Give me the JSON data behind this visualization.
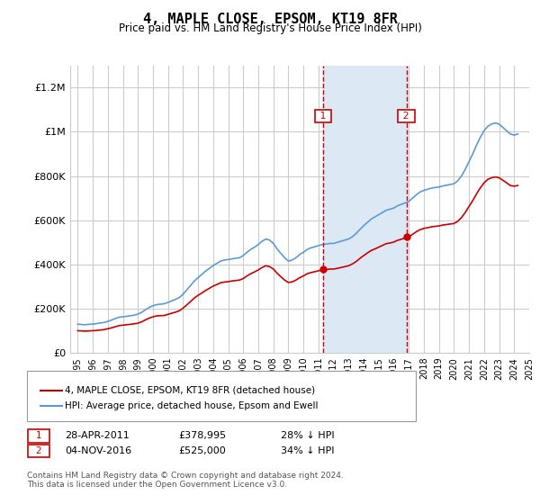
{
  "title": "4, MAPLE CLOSE, EPSOM, KT19 8FR",
  "subtitle": "Price paid vs. HM Land Registry's House Price Index (HPI)",
  "footer": "Contains HM Land Registry data © Crown copyright and database right 2024.\nThis data is licensed under the Open Government Licence v3.0.",
  "legend_line1": "4, MAPLE CLOSE, EPSOM, KT19 8FR (detached house)",
  "legend_line2": "HPI: Average price, detached house, Epsom and Ewell",
  "annotation1_label": "1",
  "annotation1_date": "28-APR-2011",
  "annotation1_price": "£378,995",
  "annotation1_pct": "28% ↓ HPI",
  "annotation1_year": 2011.32,
  "annotation1_value": 378995,
  "annotation2_label": "2",
  "annotation2_date": "04-NOV-2016",
  "annotation2_price": "£525,000",
  "annotation2_pct": "34% ↓ HPI",
  "annotation2_year": 2016.84,
  "annotation2_value": 525000,
  "hpi_color": "#5b9bd5",
  "price_color": "#cc0000",
  "shade_color": "#dce9f5",
  "grid_color": "#cccccc",
  "annotation_box_color": "#cc0000",
  "ylim_min": 0,
  "ylim_max": 1300000,
  "hpi_data": {
    "years": [
      1995,
      1995.25,
      1995.5,
      1995.75,
      1996,
      1996.25,
      1996.5,
      1996.75,
      1997,
      1997.25,
      1997.5,
      1997.75,
      1998,
      1998.25,
      1998.5,
      1998.75,
      1999,
      1999.25,
      1999.5,
      1999.75,
      2000,
      2000.25,
      2000.5,
      2000.75,
      2001,
      2001.25,
      2001.5,
      2001.75,
      2002,
      2002.25,
      2002.5,
      2002.75,
      2003,
      2003.25,
      2003.5,
      2003.75,
      2004,
      2004.25,
      2004.5,
      2004.75,
      2005,
      2005.25,
      2005.5,
      2005.75,
      2006,
      2006.25,
      2006.5,
      2006.75,
      2007,
      2007.25,
      2007.5,
      2007.75,
      2008,
      2008.25,
      2008.5,
      2008.75,
      2009,
      2009.25,
      2009.5,
      2009.75,
      2010,
      2010.25,
      2010.5,
      2010.75,
      2011,
      2011.25,
      2011.5,
      2011.75,
      2012,
      2012.25,
      2012.5,
      2012.75,
      2013,
      2013.25,
      2013.5,
      2013.75,
      2014,
      2014.25,
      2014.5,
      2014.75,
      2015,
      2015.25,
      2015.5,
      2015.75,
      2016,
      2016.25,
      2016.5,
      2016.75,
      2017,
      2017.25,
      2017.5,
      2017.75,
      2018,
      2018.25,
      2018.5,
      2018.75,
      2019,
      2019.25,
      2019.5,
      2019.75,
      2020,
      2020.25,
      2020.5,
      2020.75,
      2021,
      2021.25,
      2021.5,
      2021.75,
      2022,
      2022.25,
      2022.5,
      2022.75,
      2023,
      2023.25,
      2023.5,
      2023.75,
      2024,
      2024.25
    ],
    "values": [
      130000,
      128000,
      127000,
      129000,
      130000,
      132000,
      135000,
      137000,
      142000,
      148000,
      155000,
      161000,
      163000,
      165000,
      168000,
      170000,
      175000,
      183000,
      195000,
      205000,
      213000,
      218000,
      220000,
      222000,
      228000,
      235000,
      242000,
      250000,
      265000,
      285000,
      305000,
      325000,
      340000,
      355000,
      370000,
      382000,
      395000,
      405000,
      415000,
      420000,
      422000,
      425000,
      428000,
      430000,
      440000,
      455000,
      468000,
      478000,
      490000,
      505000,
      515000,
      510000,
      495000,
      470000,
      450000,
      430000,
      415000,
      420000,
      430000,
      445000,
      455000,
      468000,
      475000,
      480000,
      485000,
      490000,
      492000,
      495000,
      495000,
      500000,
      505000,
      510000,
      515000,
      525000,
      540000,
      558000,
      575000,
      590000,
      605000,
      615000,
      625000,
      635000,
      645000,
      650000,
      655000,
      665000,
      672000,
      678000,
      685000,
      700000,
      715000,
      728000,
      735000,
      740000,
      745000,
      748000,
      750000,
      755000,
      758000,
      762000,
      765000,
      778000,
      800000,
      830000,
      865000,
      900000,
      940000,
      975000,
      1005000,
      1025000,
      1035000,
      1040000,
      1035000,
      1020000,
      1005000,
      990000,
      985000,
      990000
    ]
  },
  "price_data": {
    "years": [
      1995,
      1995.25,
      1995.5,
      1995.75,
      1996,
      1996.25,
      1996.5,
      1996.75,
      1997,
      1997.25,
      1997.5,
      1997.75,
      1998,
      1998.25,
      1998.5,
      1998.75,
      1999,
      1999.25,
      1999.5,
      1999.75,
      2000,
      2000.25,
      2000.5,
      2000.75,
      2001,
      2001.25,
      2001.5,
      2001.75,
      2002,
      2002.25,
      2002.5,
      2002.75,
      2003,
      2003.25,
      2003.5,
      2003.75,
      2004,
      2004.25,
      2004.5,
      2004.75,
      2005,
      2005.25,
      2005.5,
      2005.75,
      2006,
      2006.25,
      2006.5,
      2006.75,
      2007,
      2007.25,
      2007.5,
      2007.75,
      2008,
      2008.25,
      2008.5,
      2008.75,
      2009,
      2009.25,
      2009.5,
      2009.75,
      2010,
      2010.25,
      2010.5,
      2010.75,
      2011,
      2011.25,
      2011.5,
      2011.75,
      2012,
      2012.25,
      2012.5,
      2012.75,
      2013,
      2013.25,
      2013.5,
      2013.75,
      2014,
      2014.25,
      2014.5,
      2014.75,
      2015,
      2015.25,
      2015.5,
      2015.75,
      2016,
      2016.25,
      2016.5,
      2016.75,
      2017,
      2017.25,
      2017.5,
      2017.75,
      2018,
      2018.25,
      2018.5,
      2018.75,
      2019,
      2019.25,
      2019.5,
      2019.75,
      2020,
      2020.25,
      2020.5,
      2020.75,
      2021,
      2021.25,
      2021.5,
      2021.75,
      2022,
      2022.25,
      2022.5,
      2022.75,
      2023,
      2023.25,
      2023.5,
      2023.75,
      2024,
      2024.25
    ],
    "values": [
      100000,
      99000,
      98000,
      99000,
      100000,
      101000,
      103000,
      105000,
      109000,
      113000,
      118000,
      123000,
      125000,
      127000,
      129000,
      131000,
      134000,
      140000,
      149000,
      157000,
      163000,
      167000,
      168000,
      169000,
      174000,
      179000,
      184000,
      190000,
      202000,
      217000,
      232000,
      248000,
      260000,
      271000,
      282000,
      292000,
      302000,
      309000,
      317000,
      320000,
      322000,
      325000,
      327000,
      329000,
      336000,
      348000,
      358000,
      366000,
      375000,
      386000,
      394000,
      390000,
      379000,
      360000,
      344000,
      329000,
      318000,
      321000,
      329000,
      340000,
      348000,
      358000,
      363000,
      367000,
      371000,
      375000,
      376000,
      379000,
      379000,
      382000,
      386000,
      390000,
      394000,
      402000,
      413000,
      427000,
      440000,
      452000,
      463000,
      470000,
      478000,
      486000,
      494000,
      497000,
      501000,
      509000,
      514000,
      519000,
      524000,
      536000,
      548000,
      557000,
      563000,
      566000,
      570000,
      572000,
      574000,
      578000,
      580000,
      583000,
      585000,
      595000,
      612000,
      635000,
      662000,
      689000,
      719000,
      746000,
      769000,
      785000,
      792000,
      796000,
      792000,
      781000,
      769000,
      757000,
      754000,
      757000
    ]
  },
  "xtick_years": [
    1995,
    1996,
    1997,
    1998,
    1999,
    2000,
    2001,
    2002,
    2003,
    2004,
    2005,
    2006,
    2007,
    2008,
    2009,
    2010,
    2011,
    2012,
    2013,
    2014,
    2015,
    2016,
    2017,
    2018,
    2019,
    2020,
    2021,
    2022,
    2023,
    2024,
    2025
  ],
  "ytick_values": [
    0,
    200000,
    400000,
    600000,
    800000,
    1000000,
    1200000
  ],
  "ytick_labels": [
    "£0",
    "£200K",
    "£400K",
    "£600K",
    "£800K",
    "£1M",
    "£1.2M"
  ]
}
